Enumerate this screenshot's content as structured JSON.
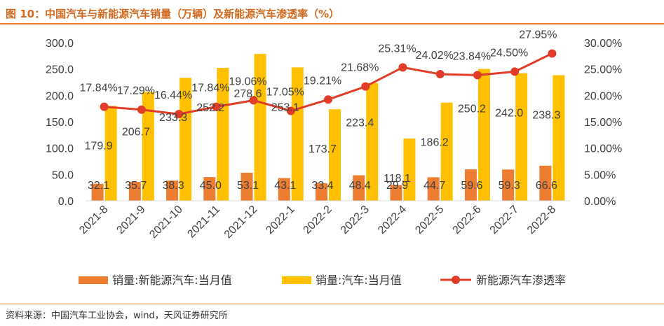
{
  "header": {
    "title": "图 10：中国汽车与新能源汽车销量（万辆）及新能源汽车渗透率（%）"
  },
  "footer": {
    "source": "资料来源：中国汽车工业协会，wind，天风证券研究所"
  },
  "colors": {
    "nev_bar": "#ED7D31",
    "auto_bar": "#FFC000",
    "rate_line": "#E03C28",
    "accent": "#E07A2A"
  },
  "chart_data": {
    "type": "bar+line",
    "title": "中国汽车与新能源汽车销量（万辆）及新能源汽车渗透率（%）",
    "categories": [
      "2021-8",
      "2021-9",
      "2021-10",
      "2021-11",
      "2021-12",
      "2022-1",
      "2022-2",
      "2022-3",
      "2022-4",
      "2022-5",
      "2022-6",
      "2022-7",
      "2022-8"
    ],
    "series": [
      {
        "name": "销量:新能源汽车:当月值",
        "type": "bar",
        "axis": "left",
        "values": [
          32.1,
          35.7,
          38.3,
          45.0,
          53.1,
          43.1,
          33.4,
          48.4,
          29.9,
          44.7,
          59.6,
          59.3,
          66.6
        ],
        "labels": [
          "32.1",
          "35.7",
          "38.3",
          "45.0",
          "53.1",
          "43.1",
          "33.4",
          "48.4",
          "29.9",
          "44.7",
          "59.6",
          "59.3",
          "66.6"
        ]
      },
      {
        "name": "销量:汽车:当月值",
        "type": "bar",
        "axis": "left",
        "values": [
          179.9,
          206.7,
          233.3,
          252.2,
          278.6,
          253.1,
          173.7,
          223.4,
          118.1,
          186.2,
          250.2,
          242.0,
          238.3
        ],
        "labels": [
          "179.9",
          "206.7",
          "233.3",
          "252.2",
          "278.6",
          "253.1",
          "173.7",
          "223.4",
          "118.1",
          "186.2",
          "250.2",
          "242.0",
          "238.3"
        ]
      },
      {
        "name": "新能源汽车渗透率",
        "type": "line",
        "axis": "right",
        "values": [
          17.84,
          17.29,
          16.44,
          17.84,
          19.06,
          17.05,
          19.21,
          21.68,
          25.31,
          24.02,
          23.84,
          24.5,
          27.95
        ],
        "labels": [
          "17.84%",
          "17.29%",
          "16.44%",
          "17.84%",
          "19.06%",
          "17.05%",
          "19.21%",
          "21.68%",
          "25.31%",
          "24.02%",
          "23.84%",
          "24.50%",
          "27.95%"
        ]
      }
    ],
    "y_left": {
      "min": 0,
      "max": 300,
      "ticks": [
        0,
        50,
        100,
        150,
        200,
        250,
        300
      ],
      "tick_labels": [
        "0.0",
        "50.0",
        "100.0",
        "150.0",
        "200.0",
        "250.0",
        "300.0"
      ]
    },
    "y_right": {
      "min": 0,
      "max": 30,
      "ticks": [
        0,
        5,
        10,
        15,
        20,
        25,
        30
      ],
      "tick_labels": [
        "0.00%",
        "5.00%",
        "10.00%",
        "15.00%",
        "20.00%",
        "25.00%",
        "30.00%"
      ]
    },
    "grid": false,
    "legend_position": "bottom"
  }
}
